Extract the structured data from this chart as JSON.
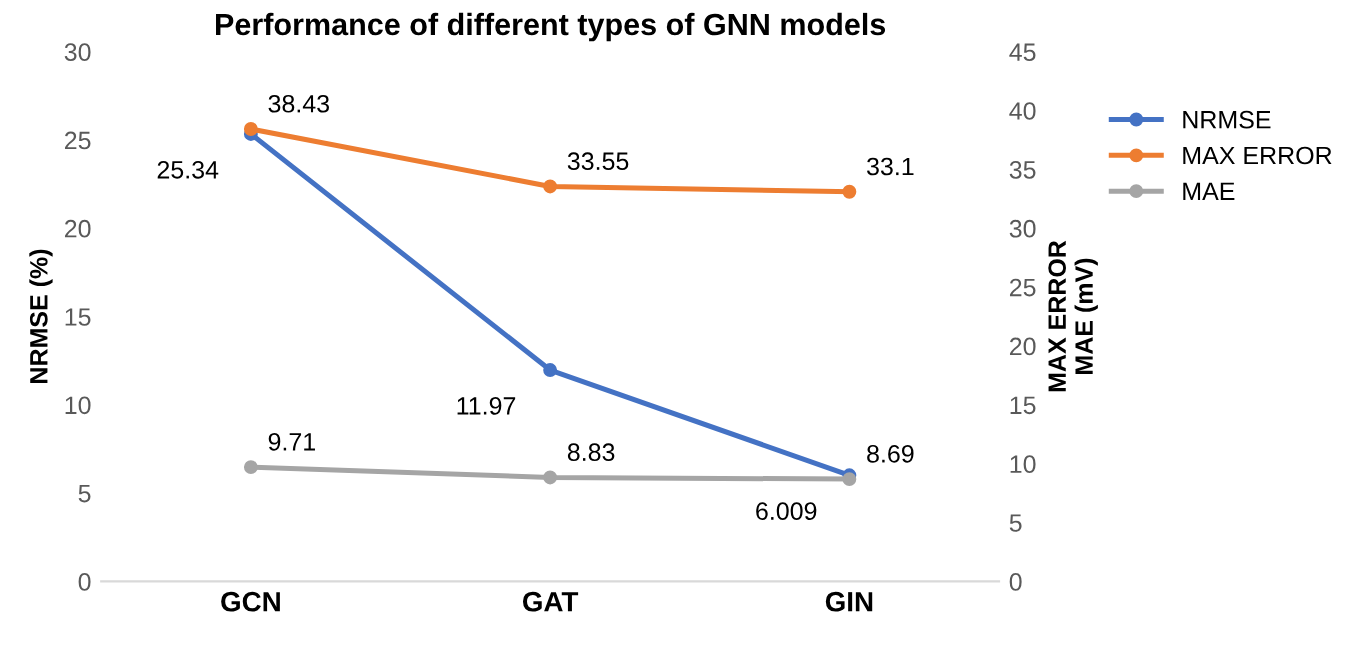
{
  "chart_data": {
    "type": "line",
    "title": "Performance of different types of GNN models",
    "ylabel": "NRMSE (%)",
    "y2label": "MAX ERROR\nMAE (mV)",
    "categories": [
      "GCN",
      "GAT",
      "GIN"
    ],
    "series": [
      {
        "name": "NRMSE",
        "color": "#4472c4",
        "values": [
          25.34,
          11.97,
          6.009
        ]
      },
      {
        "name": "MAX ERROR",
        "color": "#ed7d31",
        "values": [
          38.43,
          33.55,
          33.1
        ],
        "axis": "y2"
      },
      {
        "name": "MAE",
        "color": "#a5a5a5",
        "values": [
          9.71,
          8.83,
          8.69
        ],
        "axis": "y2"
      }
    ],
    "ylim": [
      0,
      30
    ],
    "yticks": [
      0,
      5,
      10,
      15,
      20,
      25,
      30
    ],
    "y2lim": [
      0,
      45
    ],
    "y2ticks": [
      0,
      5,
      10,
      15,
      20,
      25,
      30,
      35,
      40,
      45
    ],
    "data_labels": true,
    "legend": "right",
    "marker": "circle",
    "line_style": "solid",
    "grid": false
  }
}
